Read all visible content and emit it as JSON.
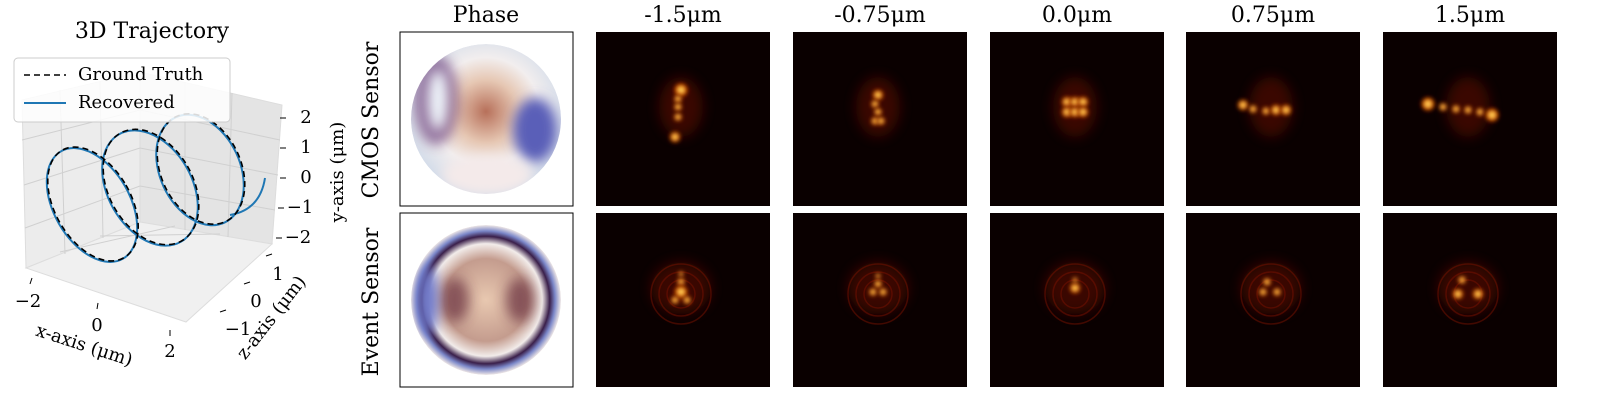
{
  "trajectory": {
    "title": "3D Trajectory",
    "legend": [
      {
        "name": "Ground Truth",
        "color": "#000000"
      },
      {
        "name": "Recovered",
        "color": "#1f77b4"
      }
    ],
    "x_label": "x-axis (μm)",
    "y_label": "y-axis (μm)",
    "z_label": "z-axis (μm)",
    "xticks": [
      {
        "value": -2,
        "label": "−2"
      },
      0,
      2
    ],
    "yticks": [
      2,
      1,
      0,
      {
        "value": -1,
        "label": "−1"
      },
      {
        "value": -2,
        "label": "−2"
      }
    ],
    "zticks": [
      {
        "value": -1,
        "label": "−1"
      },
      0,
      1
    ]
  },
  "grid": {
    "column_headers": [
      "Phase",
      "-1.5μm",
      "-0.75μm",
      "0.0μm",
      "0.75μm",
      "1.5μm"
    ],
    "row_labels": [
      "CMOS Sensor",
      "Event Sensor"
    ]
  }
}
